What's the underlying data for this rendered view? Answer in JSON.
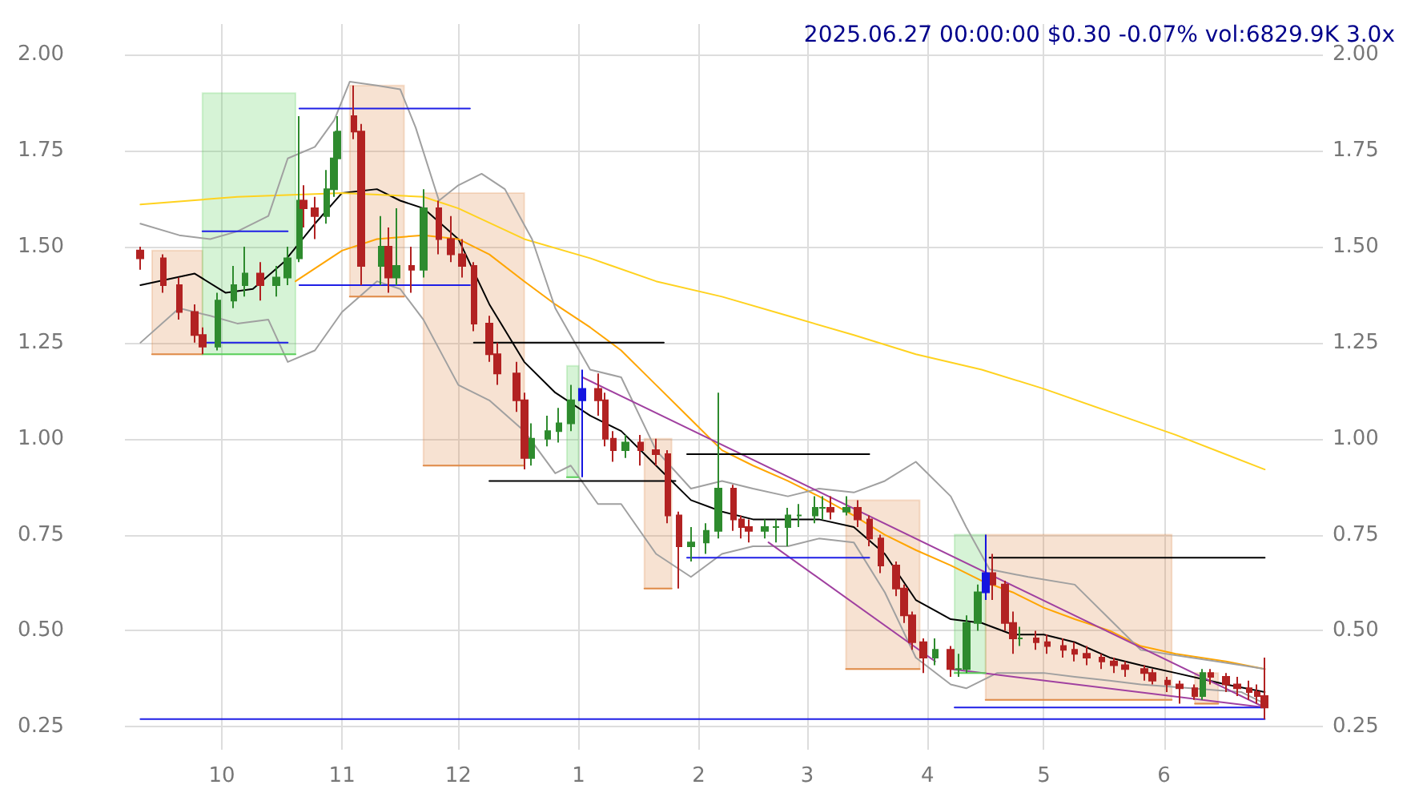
{
  "chart_data": {
    "type": "candlestick",
    "title": "2025.06.27 00:00:00 $0.30 -0.07% vol:6829.9K 3.0x",
    "x": [
      "2024-09-10",
      "2024-09-16",
      "2024-09-20",
      "2024-09-24",
      "2024-09-26",
      "2024-09-30",
      "2024-10-04",
      "2024-10-07",
      "2024-10-11",
      "2024-10-15",
      "2024-10-18",
      "2024-10-21",
      "2024-10-22",
      "2024-10-25",
      "2024-10-28",
      "2024-10-30",
      "2024-10-31",
      "2024-11-04",
      "2024-11-06",
      "2024-11-11",
      "2024-11-13",
      "2024-11-15",
      "2024-11-19",
      "2024-11-22",
      "2024-11-26",
      "2024-11-29",
      "2024-12-02",
      "2024-12-05",
      "2024-12-09",
      "2024-12-11",
      "2024-12-16",
      "2024-12-18",
      "2024-12-20",
      "2024-12-24",
      "2024-12-27",
      "2024-12-30",
      "2025-01-02",
      "2025-01-06",
      "2025-01-08",
      "2025-01-10",
      "2025-01-13",
      "2025-01-17",
      "2025-01-21",
      "2025-01-24",
      "2025-01-27",
      "2025-01-30",
      "2025-02-03",
      "2025-02-06",
      "2025-02-10",
      "2025-02-12",
      "2025-02-14",
      "2025-02-18",
      "2025-02-21",
      "2025-02-24",
      "2025-02-27",
      "2025-03-03",
      "2025-03-05",
      "2025-03-07",
      "2025-03-11",
      "2025-03-14",
      "2025-03-17",
      "2025-03-20",
      "2025-03-24",
      "2025-03-26",
      "2025-03-28",
      "2025-03-31",
      "2025-04-03",
      "2025-04-07",
      "2025-04-09",
      "2025-04-11",
      "2025-04-14",
      "2025-04-16",
      "2025-04-18",
      "2025-04-21",
      "2025-04-23",
      "2025-04-25",
      "2025-04-29",
      "2025-05-02",
      "2025-05-06",
      "2025-05-09",
      "2025-05-12",
      "2025-05-16",
      "2025-05-19",
      "2025-05-22",
      "2025-05-27",
      "2025-05-29",
      "2025-06-02",
      "2025-06-05",
      "2025-06-09",
      "2025-06-11",
      "2025-06-13",
      "2025-06-17",
      "2025-06-20",
      "2025-06-23",
      "2025-06-25",
      "2025-06-27"
    ],
    "ohlc": [
      [
        1.49,
        1.5,
        1.44,
        1.47
      ],
      [
        1.47,
        1.48,
        1.38,
        1.4
      ],
      [
        1.4,
        1.42,
        1.31,
        1.33
      ],
      [
        1.33,
        1.35,
        1.25,
        1.27
      ],
      [
        1.27,
        1.29,
        1.22,
        1.24
      ],
      [
        1.24,
        1.38,
        1.23,
        1.36
      ],
      [
        1.36,
        1.45,
        1.34,
        1.4
      ],
      [
        1.4,
        1.5,
        1.37,
        1.43
      ],
      [
        1.43,
        1.46,
        1.36,
        1.4
      ],
      [
        1.4,
        1.45,
        1.37,
        1.42
      ],
      [
        1.42,
        1.5,
        1.4,
        1.47
      ],
      [
        1.47,
        1.84,
        1.46,
        1.62
      ],
      [
        1.62,
        1.66,
        1.55,
        1.6
      ],
      [
        1.6,
        1.63,
        1.52,
        1.58
      ],
      [
        1.58,
        1.7,
        1.56,
        1.65
      ],
      [
        1.65,
        1.8,
        1.63,
        1.73
      ],
      [
        1.73,
        1.84,
        1.71,
        1.8
      ],
      [
        1.84,
        1.92,
        1.78,
        1.8
      ],
      [
        1.8,
        1.82,
        1.4,
        1.45
      ],
      [
        1.45,
        1.58,
        1.4,
        1.5
      ],
      [
        1.5,
        1.55,
        1.38,
        1.42
      ],
      [
        1.42,
        1.6,
        1.4,
        1.45
      ],
      [
        1.45,
        1.5,
        1.38,
        1.44
      ],
      [
        1.44,
        1.65,
        1.42,
        1.6
      ],
      [
        1.6,
        1.62,
        1.48,
        1.52
      ],
      [
        1.52,
        1.58,
        1.46,
        1.48
      ],
      [
        1.48,
        1.52,
        1.42,
        1.45
      ],
      [
        1.45,
        1.46,
        1.28,
        1.3
      ],
      [
        1.3,
        1.32,
        1.2,
        1.22
      ],
      [
        1.22,
        1.25,
        1.14,
        1.17
      ],
      [
        1.17,
        1.2,
        1.07,
        1.1
      ],
      [
        1.1,
        1.12,
        0.92,
        0.95
      ],
      [
        0.95,
        1.04,
        0.93,
        1.0
      ],
      [
        1.0,
        1.06,
        0.98,
        1.02
      ],
      [
        1.02,
        1.08,
        0.99,
        1.04
      ],
      [
        1.04,
        1.14,
        1.02,
        1.1
      ],
      [
        1.1,
        1.18,
        0.9,
        1.13
      ],
      [
        1.13,
        1.17,
        1.06,
        1.1
      ],
      [
        1.1,
        1.12,
        0.98,
        1.0
      ],
      [
        1.0,
        1.02,
        0.94,
        0.97
      ],
      [
        0.97,
        1.01,
        0.95,
        0.99
      ],
      [
        0.99,
        1.01,
        0.93,
        0.97
      ],
      [
        0.97,
        1.0,
        0.93,
        0.96
      ],
      [
        0.96,
        0.97,
        0.78,
        0.8
      ],
      [
        0.8,
        0.81,
        0.61,
        0.72
      ],
      [
        0.72,
        0.77,
        0.68,
        0.73
      ],
      [
        0.73,
        0.78,
        0.7,
        0.76
      ],
      [
        0.76,
        1.12,
        0.74,
        0.87
      ],
      [
        0.87,
        0.88,
        0.76,
        0.79
      ],
      [
        0.79,
        0.8,
        0.74,
        0.77
      ],
      [
        0.77,
        0.79,
        0.73,
        0.76
      ],
      [
        0.76,
        0.79,
        0.74,
        0.77
      ],
      [
        0.77,
        0.79,
        0.73,
        0.77
      ],
      [
        0.77,
        0.82,
        0.72,
        0.8
      ],
      [
        0.8,
        0.83,
        0.77,
        0.8
      ],
      [
        0.8,
        0.85,
        0.78,
        0.82
      ],
      [
        0.82,
        0.85,
        0.79,
        0.82
      ],
      [
        0.82,
        0.85,
        0.79,
        0.81
      ],
      [
        0.81,
        0.85,
        0.8,
        0.82
      ],
      [
        0.82,
        0.84,
        0.77,
        0.79
      ],
      [
        0.79,
        0.8,
        0.72,
        0.74
      ],
      [
        0.74,
        0.75,
        0.65,
        0.67
      ],
      [
        0.67,
        0.68,
        0.59,
        0.61
      ],
      [
        0.61,
        0.62,
        0.52,
        0.54
      ],
      [
        0.54,
        0.55,
        0.45,
        0.47
      ],
      [
        0.47,
        0.48,
        0.39,
        0.43
      ],
      [
        0.43,
        0.48,
        0.41,
        0.45
      ],
      [
        0.45,
        0.46,
        0.38,
        0.4
      ],
      [
        0.4,
        0.44,
        0.38,
        0.4
      ],
      [
        0.4,
        0.54,
        0.39,
        0.52
      ],
      [
        0.52,
        0.62,
        0.5,
        0.6
      ],
      [
        0.6,
        0.75,
        0.58,
        0.65
      ],
      [
        0.65,
        0.7,
        0.58,
        0.62
      ],
      [
        0.62,
        0.63,
        0.5,
        0.52
      ],
      [
        0.52,
        0.55,
        0.44,
        0.48
      ],
      [
        0.48,
        0.51,
        0.46,
        0.48
      ],
      [
        0.48,
        0.5,
        0.45,
        0.47
      ],
      [
        0.47,
        0.49,
        0.44,
        0.46
      ],
      [
        0.46,
        0.48,
        0.43,
        0.45
      ],
      [
        0.45,
        0.47,
        0.42,
        0.44
      ],
      [
        0.44,
        0.46,
        0.41,
        0.43
      ],
      [
        0.43,
        0.44,
        0.4,
        0.42
      ],
      [
        0.42,
        0.43,
        0.39,
        0.41
      ],
      [
        0.41,
        0.42,
        0.38,
        0.4
      ],
      [
        0.4,
        0.41,
        0.37,
        0.39
      ],
      [
        0.39,
        0.4,
        0.36,
        0.37
      ],
      [
        0.37,
        0.38,
        0.34,
        0.36
      ],
      [
        0.36,
        0.37,
        0.31,
        0.35
      ],
      [
        0.35,
        0.36,
        0.32,
        0.33
      ],
      [
        0.33,
        0.4,
        0.32,
        0.39
      ],
      [
        0.39,
        0.4,
        0.36,
        0.38
      ],
      [
        0.38,
        0.39,
        0.34,
        0.36
      ],
      [
        0.36,
        0.38,
        0.33,
        0.35
      ],
      [
        0.35,
        0.37,
        0.32,
        0.34
      ],
      [
        0.34,
        0.36,
        0.31,
        0.33
      ],
      [
        0.33,
        0.43,
        0.27,
        0.3
      ]
    ],
    "colors": [
      "#b22222",
      "#b22222",
      "#b22222",
      "#b22222",
      "#b22222",
      "#2e8b2e",
      "#2e8b2e",
      "#2e8b2e",
      "#b22222",
      "#2e8b2e",
      "#2e8b2e",
      "#2e8b2e",
      "#b22222",
      "#b22222",
      "#2e8b2e",
      "#2e8b2e",
      "#2e8b2e",
      "#b22222",
      "#b22222",
      "#2e8b2e",
      "#b22222",
      "#2e8b2e",
      "#b22222",
      "#2e8b2e",
      "#b22222",
      "#b22222",
      "#b22222",
      "#b22222",
      "#b22222",
      "#b22222",
      "#b22222",
      "#b22222",
      "#2e8b2e",
      "#2e8b2e",
      "#2e8b2e",
      "#2e8b2e",
      "#1515e0",
      "#b22222",
      "#b22222",
      "#b22222",
      "#2e8b2e",
      "#b22222",
      "#b22222",
      "#b22222",
      "#b22222",
      "#2e8b2e",
      "#2e8b2e",
      "#2e8b2e",
      "#b22222",
      "#b22222",
      "#b22222",
      "#2e8b2e",
      "#2e8b2e",
      "#2e8b2e",
      "#2e8b2e",
      "#2e8b2e",
      "#2e8b2e",
      "#b22222",
      "#2e8b2e",
      "#b22222",
      "#b22222",
      "#b22222",
      "#b22222",
      "#b22222",
      "#b22222",
      "#b22222",
      "#2e8b2e",
      "#b22222",
      "#2e8b2e",
      "#2e8b2e",
      "#2e8b2e",
      "#1515e0",
      "#b22222",
      "#b22222",
      "#b22222",
      "#2e8b2e",
      "#b22222",
      "#b22222",
      "#b22222",
      "#b22222",
      "#b22222",
      "#b22222",
      "#b22222",
      "#b22222",
      "#b22222",
      "#b22222",
      "#b22222",
      "#b22222",
      "#b22222",
      "#2e8b2e",
      "#b22222",
      "#b22222",
      "#b22222",
      "#b22222",
      "#b22222",
      "#b22222"
    ],
    "series": [
      {
        "type": "line",
        "color": "#000000",
        "x": [
          "2024-09-10",
          "2024-09-24",
          "2024-10-02",
          "2024-10-09",
          "2024-10-17",
          "2024-10-25",
          "2024-11-01",
          "2024-11-10",
          "2024-11-16",
          "2024-11-22",
          "2024-12-01",
          "2024-12-09",
          "2024-12-18",
          "2024-12-26",
          "2025-01-04",
          "2025-01-12",
          "2025-01-21",
          "2025-01-30",
          "2025-02-07",
          "2025-02-15",
          "2025-02-24",
          "2025-03-04",
          "2025-03-13",
          "2025-03-21",
          "2025-03-29",
          "2025-04-07",
          "2025-04-15",
          "2025-04-23",
          "2025-05-01",
          "2025-05-09",
          "2025-05-18",
          "2025-05-26",
          "2025-06-04",
          "2025-06-17",
          "2025-06-27"
        ],
        "values": [
          1.4,
          1.43,
          1.38,
          1.39,
          1.46,
          1.56,
          1.64,
          1.65,
          1.62,
          1.6,
          1.52,
          1.35,
          1.2,
          1.12,
          1.06,
          1.02,
          0.93,
          0.84,
          0.81,
          0.79,
          0.79,
          0.79,
          0.77,
          0.7,
          0.58,
          0.53,
          0.52,
          0.49,
          0.49,
          0.47,
          0.43,
          0.41,
          0.39,
          0.36,
          0.34
        ]
      },
      {
        "type": "line",
        "color": "#ffa500",
        "x": [
          "2024-10-20",
          "2024-11-01",
          "2024-11-10",
          "2024-11-22",
          "2024-12-01",
          "2024-12-09",
          "2024-12-18",
          "2024-12-26",
          "2025-01-04",
          "2025-01-12",
          "2025-01-21",
          "2025-01-30",
          "2025-02-07",
          "2025-02-15",
          "2025-02-24",
          "2025-03-04",
          "2025-03-13",
          "2025-03-21",
          "2025-03-29",
          "2025-04-07",
          "2025-04-15",
          "2025-04-23",
          "2025-05-01",
          "2025-05-09",
          "2025-05-18",
          "2025-05-26",
          "2025-06-04",
          "2025-06-17",
          "2025-06-27"
        ],
        "values": [
          1.41,
          1.49,
          1.52,
          1.53,
          1.52,
          1.48,
          1.41,
          1.35,
          1.29,
          1.23,
          1.14,
          1.05,
          0.97,
          0.93,
          0.89,
          0.85,
          0.8,
          0.75,
          0.71,
          0.67,
          0.63,
          0.6,
          0.56,
          0.53,
          0.5,
          0.46,
          0.44,
          0.42,
          0.4
        ]
      },
      {
        "type": "line",
        "color": "#ffd21f",
        "x": [
          "2024-09-10",
          "2024-10-05",
          "2024-11-01",
          "2024-11-22",
          "2024-12-01",
          "2024-12-18",
          "2025-01-04",
          "2025-01-21",
          "2025-02-07",
          "2025-02-24",
          "2025-03-13",
          "2025-03-29",
          "2025-04-15",
          "2025-05-01",
          "2025-05-18",
          "2025-06-04",
          "2025-06-27"
        ],
        "values": [
          1.61,
          1.63,
          1.64,
          1.63,
          1.6,
          1.52,
          1.47,
          1.41,
          1.37,
          1.32,
          1.27,
          1.22,
          1.18,
          1.13,
          1.07,
          1.01,
          0.92
        ]
      },
      {
        "type": "line",
        "color": "#a0a0a0",
        "x": [
          "2024-09-10",
          "2024-09-20",
          "2024-09-28",
          "2024-10-05",
          "2024-10-13",
          "2024-10-18",
          "2024-10-25",
          "2024-10-30",
          "2024-11-03",
          "2024-11-10",
          "2024-11-16",
          "2024-11-20",
          "2024-11-26",
          "2024-12-01",
          "2024-12-07",
          "2024-12-13",
          "2024-12-20",
          "2024-12-26",
          "2025-01-04",
          "2025-01-12",
          "2025-01-21",
          "2025-01-30",
          "2025-02-07",
          "2025-02-15",
          "2025-02-24",
          "2025-03-04",
          "2025-03-13",
          "2025-03-21",
          "2025-03-29",
          "2025-04-07",
          "2025-04-11",
          "2025-04-17",
          "2025-04-27",
          "2025-05-09",
          "2025-05-18",
          "2025-05-26",
          "2025-06-08",
          "2025-06-21",
          "2025-06-27"
        ],
        "values": [
          1.56,
          1.53,
          1.52,
          1.54,
          1.58,
          1.73,
          1.76,
          1.83,
          1.93,
          1.92,
          1.91,
          1.81,
          1.62,
          1.66,
          1.69,
          1.65,
          1.52,
          1.34,
          1.18,
          1.16,
          0.97,
          0.87,
          0.89,
          0.87,
          0.85,
          0.87,
          0.86,
          0.89,
          0.94,
          0.85,
          0.77,
          0.66,
          0.64,
          0.62,
          0.53,
          0.45,
          0.43,
          0.41,
          0.4
        ]
      },
      {
        "type": "line",
        "color": "#a0a0a0",
        "x": [
          "2024-09-10",
          "2024-09-20",
          "2024-09-28",
          "2024-10-05",
          "2024-10-13",
          "2024-10-18",
          "2024-10-25",
          "2024-11-01",
          "2024-11-10",
          "2024-11-16",
          "2024-11-22",
          "2024-12-01",
          "2024-12-09",
          "2024-12-18",
          "2024-12-26",
          "2024-12-30",
          "2025-01-06",
          "2025-01-12",
          "2025-01-21",
          "2025-01-30",
          "2025-02-07",
          "2025-02-15",
          "2025-02-24",
          "2025-03-04",
          "2025-03-13",
          "2025-03-21",
          "2025-03-29",
          "2025-04-07",
          "2025-04-11",
          "2025-04-19",
          "2025-05-01",
          "2025-05-09",
          "2025-05-18",
          "2025-05-26",
          "2025-06-08",
          "2025-06-21",
          "2025-06-27"
        ],
        "values": [
          1.25,
          1.34,
          1.32,
          1.3,
          1.31,
          1.2,
          1.23,
          1.33,
          1.41,
          1.39,
          1.31,
          1.14,
          1.1,
          1.02,
          0.91,
          0.93,
          0.83,
          0.83,
          0.7,
          0.64,
          0.7,
          0.72,
          0.72,
          0.74,
          0.73,
          0.6,
          0.43,
          0.36,
          0.35,
          0.39,
          0.39,
          0.38,
          0.37,
          0.36,
          0.35,
          0.34,
          0.31
        ]
      },
      {
        "type": "line",
        "color": "#a040a0",
        "x": [
          "2025-01-02",
          "2025-06-27"
        ],
        "values": [
          1.16,
          0.3
        ]
      },
      {
        "type": "line",
        "color": "#a040a0",
        "x": [
          "2025-02-19",
          "2025-04-03"
        ],
        "values": [
          0.73,
          0.42
        ]
      },
      {
        "type": "line",
        "color": "#a040a0",
        "x": [
          "2025-04-07",
          "2025-06-27"
        ],
        "values": [
          0.4,
          0.3
        ]
      },
      {
        "type": "line",
        "color": "#1f1fe6",
        "x": [
          "2024-09-26",
          "2024-10-18"
        ],
        "values": [
          1.54,
          1.54
        ]
      },
      {
        "type": "line",
        "color": "#1f1fe6",
        "x": [
          "2024-09-26",
          "2024-10-18"
        ],
        "values": [
          1.25,
          1.25
        ]
      },
      {
        "type": "line",
        "color": "#1f1fe6",
        "x": [
          "2024-10-21",
          "2024-12-04"
        ],
        "values": [
          1.86,
          1.86
        ]
      },
      {
        "type": "line",
        "color": "#1f1fe6",
        "x": [
          "2024-10-21",
          "2024-12-04"
        ],
        "values": [
          1.4,
          1.4
        ]
      },
      {
        "type": "line",
        "color": "#000000",
        "x": [
          "2024-12-05",
          "2025-01-23"
        ],
        "values": [
          1.25,
          1.25
        ]
      },
      {
        "type": "line",
        "color": "#000000",
        "x": [
          "2024-12-09",
          "2025-01-26"
        ],
        "values": [
          0.89,
          0.89
        ]
      },
      {
        "type": "line",
        "color": "#000000",
        "x": [
          "2025-01-29",
          "2025-03-17"
        ],
        "values": [
          0.96,
          0.96
        ]
      },
      {
        "type": "line",
        "color": "#1f1fe6",
        "x": [
          "2025-01-29",
          "2025-03-17"
        ],
        "values": [
          0.69,
          0.69
        ]
      },
      {
        "type": "line",
        "color": "#000000",
        "x": [
          "2025-04-17",
          "2025-06-27"
        ],
        "values": [
          0.69,
          0.69
        ]
      },
      {
        "type": "line",
        "color": "#1f1fe6",
        "x": [
          "2025-04-08",
          "2025-06-27"
        ],
        "values": [
          0.3,
          0.3
        ]
      },
      {
        "type": "line",
        "color": "#1f1fe6",
        "x": [
          "2024-09-10",
          "2025-06-27"
        ],
        "values": [
          0.27,
          0.27
        ]
      },
      {
        "type": "line",
        "color": "#e08c4a",
        "x": [
          "2024-09-13",
          "2024-09-26"
        ],
        "values": [
          1.22,
          1.22
        ],
        "lower": [
          1.22,
          1.22
        ],
        "upper": [
          1.49,
          1.49
        ]
      },
      {
        "type": "line",
        "color": "#5ccf5c",
        "x": [
          "2024-09-26",
          "2024-10-20"
        ],
        "values": [
          1.22,
          1.22
        ],
        "lower": [
          1.22,
          1.22
        ],
        "upper": [
          1.9,
          1.9
        ]
      },
      {
        "type": "line",
        "color": "#e08c4a",
        "x": [
          "2024-11-03",
          "2024-11-17"
        ],
        "values": [
          1.37,
          1.37
        ],
        "lower": [
          1.37,
          1.37
        ],
        "upper": [
          1.92,
          1.92
        ]
      },
      {
        "type": "line",
        "color": "#e08c4a",
        "x": [
          "2024-11-22",
          "2024-12-18"
        ],
        "values": [
          0.93,
          0.93
        ],
        "lower": [
          0.93,
          0.93
        ],
        "upper": [
          1.64,
          1.64
        ]
      },
      {
        "type": "line",
        "color": "#5ccf5c",
        "x": [
          "2024-12-29",
          "2025-01-01"
        ],
        "values": [
          0.9,
          0.9
        ],
        "lower": [
          0.9,
          0.9
        ],
        "upper": [
          1.19,
          1.19
        ]
      },
      {
        "type": "line",
        "color": "#e08c4a",
        "x": [
          "2025-01-18",
          "2025-01-25"
        ],
        "values": [
          0.61,
          0.61
        ],
        "lower": [
          0.61,
          0.61
        ],
        "upper": [
          1.0,
          1.0
        ]
      },
      {
        "type": "line",
        "color": "#e08c4a",
        "x": [
          "2025-03-11",
          "2025-03-30"
        ],
        "values": [
          0.4,
          0.4
        ],
        "lower": [
          0.4,
          0.4
        ],
        "upper": [
          0.84,
          0.84
        ]
      },
      {
        "type": "line",
        "color": "#5ccf5c",
        "x": [
          "2025-04-08",
          "2025-04-16"
        ],
        "values": [
          0.39,
          0.39
        ],
        "lower": [
          0.39,
          0.39
        ],
        "upper": [
          0.75,
          0.75
        ]
      },
      {
        "type": "line",
        "color": "#e08c4a",
        "x": [
          "2025-04-16",
          "2025-06-03"
        ],
        "values": [
          0.32,
          0.32
        ],
        "lower": [
          0.32,
          0.32
        ],
        "upper": [
          0.75,
          0.75
        ]
      },
      {
        "type": "line",
        "color": "#e08c4a",
        "x": [
          "2025-06-09",
          "2025-06-15"
        ],
        "values": [
          0.31,
          0.31
        ],
        "lower": [
          0.31,
          0.31
        ],
        "upper": [
          0.39,
          0.39
        ]
      }
    ],
    "xlim": [
      "2024-09-06",
      "2025-07-12"
    ],
    "xticks": [
      {
        "value": "2024-10-01",
        "label": "10"
      },
      {
        "value": "2024-11-01",
        "label": "11"
      },
      {
        "value": "2024-12-01",
        "label": "12"
      },
      {
        "value": "2025-01-01",
        "label": "1"
      },
      {
        "value": "2025-02-01",
        "label": "2"
      },
      {
        "value": "2025-03-01",
        "label": "3"
      },
      {
        "value": "2025-04-01",
        "label": "4"
      },
      {
        "value": "2025-05-01",
        "label": "5"
      },
      {
        "value": "2025-06-01",
        "label": "6"
      }
    ],
    "ylim": [
      0.19,
      2.08
    ],
    "yticks": [
      {
        "value": 0.25,
        "label": "0.25"
      },
      {
        "value": 0.5,
        "label": "0.50"
      },
      {
        "value": 0.75,
        "label": "0.75"
      },
      {
        "value": 1,
        "label": "1.00"
      },
      {
        "value": 1.25,
        "label": "1.25"
      },
      {
        "value": 1.5,
        "label": "1.50"
      },
      {
        "value": 1.75,
        "label": "1.75"
      },
      {
        "value": 2,
        "label": "2.00"
      }
    ],
    "y2lim": [
      0.19,
      2.08
    ],
    "y2ticks": [
      {
        "value": 0.25,
        "label": "0.25"
      },
      {
        "value": 0.5,
        "label": "0.50"
      },
      {
        "value": 0.75,
        "label": "0.75"
      },
      {
        "value": 1,
        "label": "1.00"
      },
      {
        "value": 1.25,
        "label": "1.25"
      },
      {
        "value": 1.5,
        "label": "1.50"
      },
      {
        "value": 1.75,
        "label": "1.75"
      },
      {
        "value": 2,
        "label": "2.00"
      }
    ],
    "grid": true,
    "marker": "none"
  }
}
